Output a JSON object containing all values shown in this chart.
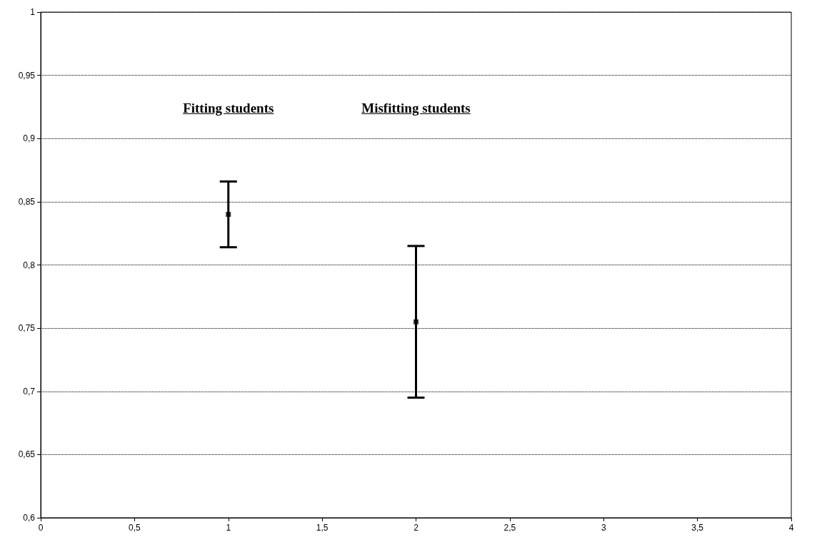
{
  "chart_data": {
    "type": "scatter",
    "x": [
      1,
      2
    ],
    "series": [
      {
        "color": "#000000",
        "values": [
          0.84,
          0.755
        ],
        "errors": [
          0.026,
          0.06
        ]
      }
    ],
    "xlim": [
      0,
      4
    ],
    "xticks": [
      0,
      {
        "value": 0.5,
        "label": "0,5"
      },
      1,
      {
        "value": 1.5,
        "label": "1,5"
      },
      2,
      {
        "value": 2.5,
        "label": "2,5"
      },
      3,
      {
        "value": 3.5,
        "label": "3,5"
      },
      4
    ],
    "ylim": [
      0.6,
      1
    ],
    "yticks": [
      {
        "value": 0.6,
        "label": "0,6"
      },
      {
        "value": 0.65,
        "label": "0,65"
      },
      {
        "value": 0.7,
        "label": "0,7"
      },
      {
        "value": 0.75,
        "label": "0,75"
      },
      {
        "value": 0.8,
        "label": "0,8"
      },
      {
        "value": 0.85,
        "label": "0,85"
      },
      {
        "value": 0.9,
        "label": "0,9"
      },
      {
        "value": 0.95,
        "label": "0,95"
      },
      1
    ],
    "grid": "y",
    "line_style": "dotted",
    "marker": "square",
    "annotations": [
      "Fitting students",
      "Misfitting students"
    ]
  }
}
